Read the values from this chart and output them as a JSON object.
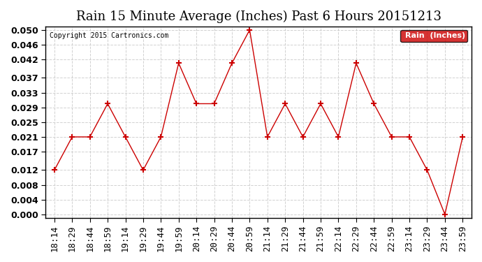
{
  "title": "Rain 15 Minute Average (Inches) Past 6 Hours 20151213",
  "copyright": "Copyright 2015 Cartronics.com",
  "legend_label": "Rain  (Inches)",
  "x_labels": [
    "18:14",
    "18:29",
    "18:44",
    "18:59",
    "19:14",
    "19:29",
    "19:44",
    "19:59",
    "20:14",
    "20:29",
    "20:44",
    "20:59",
    "21:14",
    "21:29",
    "21:44",
    "21:59",
    "22:14",
    "22:29",
    "22:44",
    "22:59",
    "23:14",
    "23:29",
    "23:44",
    "23:59"
  ],
  "y_values": [
    0.012,
    0.021,
    0.021,
    0.03,
    0.021,
    0.012,
    0.021,
    0.041,
    0.03,
    0.03,
    0.041,
    0.05,
    0.021,
    0.03,
    0.021,
    0.03,
    0.021,
    0.041,
    0.03,
    0.021,
    0.021,
    0.012,
    0.0,
    0.021
  ],
  "line_color": "#cc0000",
  "marker": "+",
  "marker_color": "#cc0000",
  "background_color": "#ffffff",
  "grid_color": "#cccccc",
  "y_ticks": [
    0.0,
    0.004,
    0.008,
    0.012,
    0.017,
    0.021,
    0.025,
    0.029,
    0.033,
    0.037,
    0.042,
    0.046,
    0.05
  ],
  "ylim": [
    0.0,
    0.05
  ],
  "title_fontsize": 13,
  "tick_fontsize": 9,
  "legend_bg": "#cc0000",
  "legend_text_color": "#ffffff"
}
